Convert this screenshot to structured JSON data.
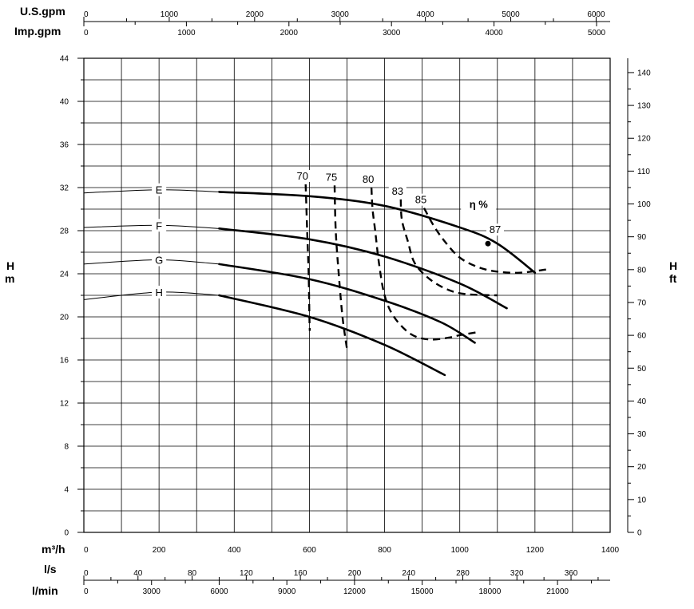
{
  "chart_data": {
    "type": "line",
    "axes": {
      "left": {
        "unit_top": "H",
        "unit_bottom": "m",
        "ylim": [
          0,
          44
        ],
        "ticks": [
          0,
          4,
          8,
          12,
          16,
          20,
          24,
          28,
          32,
          36,
          40,
          44
        ]
      },
      "right": {
        "unit_top": "H",
        "unit_bottom": "ft",
        "ylim": [
          0,
          144.36
        ],
        "ticks": [
          0,
          10,
          20,
          30,
          40,
          50,
          60,
          70,
          80,
          90,
          100,
          110,
          120,
          130,
          140
        ]
      },
      "m3h": {
        "label": "m³/h",
        "xlim": [
          0,
          1400
        ],
        "ticks": [
          0,
          200,
          400,
          600,
          800,
          1000,
          1200,
          1400
        ]
      },
      "ls": {
        "label": "l/s",
        "ticks": [
          0,
          40,
          80,
          120,
          160,
          200,
          240,
          280,
          320,
          360
        ]
      },
      "lmin": {
        "label": "l/min",
        "ticks": [
          0,
          3000,
          6000,
          9000,
          12000,
          15000,
          18000,
          21000
        ]
      },
      "usgpm": {
        "label": "U.S.gpm",
        "ticks": [
          0,
          1000,
          2000,
          3000,
          4000,
          5000,
          6000
        ]
      },
      "impgpm": {
        "label": "Imp.gpm",
        "ticks": [
          0,
          1000,
          2000,
          3000,
          4000,
          5000
        ]
      }
    },
    "grid": true,
    "head_curves": [
      {
        "name": "E",
        "label_x": 200,
        "points": [
          [
            0,
            31.5
          ],
          [
            200,
            31.8
          ],
          [
            360,
            31.6
          ],
          [
            600,
            31.2
          ],
          [
            800,
            30.3
          ],
          [
            1000,
            28.3
          ],
          [
            1100,
            26.8
          ],
          [
            1200,
            24.1
          ]
        ],
        "bold_from": 360
      },
      {
        "name": "F",
        "label_x": 200,
        "points": [
          [
            0,
            28.3
          ],
          [
            200,
            28.5
          ],
          [
            360,
            28.2
          ],
          [
            600,
            27.2
          ],
          [
            800,
            25.6
          ],
          [
            1000,
            23.1
          ],
          [
            1125,
            20.8
          ]
        ],
        "bold_from": 360
      },
      {
        "name": "G",
        "label_x": 200,
        "points": [
          [
            0,
            24.9
          ],
          [
            200,
            25.3
          ],
          [
            360,
            24.9
          ],
          [
            600,
            23.5
          ],
          [
            800,
            21.5
          ],
          [
            950,
            19.5
          ],
          [
            1040,
            17.6
          ]
        ],
        "bold_from": 360
      },
      {
        "name": "H",
        "label_x": 200,
        "points": [
          [
            0,
            21.6
          ],
          [
            200,
            22.3
          ],
          [
            360,
            22.0
          ],
          [
            600,
            20.0
          ],
          [
            800,
            17.4
          ],
          [
            960,
            14.6
          ]
        ],
        "bold_from": 360
      }
    ],
    "efficiency_label": "η %",
    "efficiency_curves": [
      {
        "name": "70",
        "points": [
          [
            590,
            32.3
          ],
          [
            594,
            28
          ],
          [
            598,
            24
          ],
          [
            600,
            20
          ],
          [
            601,
            18.7
          ]
        ]
      },
      {
        "name": "75",
        "points": [
          [
            667,
            32.2
          ],
          [
            670,
            28
          ],
          [
            678,
            24
          ],
          [
            688,
            20
          ],
          [
            700,
            17
          ]
        ]
      },
      {
        "name": "80",
        "points": [
          [
            765,
            32.0
          ],
          [
            768,
            30
          ],
          [
            775,
            28
          ],
          [
            785,
            25
          ],
          [
            800,
            22
          ],
          [
            825,
            20
          ],
          [
            870,
            18.4
          ],
          [
            920,
            17.9
          ],
          [
            975,
            18.1
          ],
          [
            1000,
            18.3
          ],
          [
            1050,
            18.6
          ]
        ]
      },
      {
        "name": "83",
        "points": [
          [
            843,
            30.9
          ],
          [
            846,
            29
          ],
          [
            862,
            27
          ],
          [
            880,
            25
          ],
          [
            920,
            23.5
          ],
          [
            970,
            22.5
          ],
          [
            1020,
            22.1
          ],
          [
            1100,
            22.0
          ]
        ]
      },
      {
        "name": "85",
        "points": [
          [
            905,
            30.1
          ],
          [
            930,
            28.5
          ],
          [
            960,
            27
          ],
          [
            1000,
            25.5
          ],
          [
            1050,
            24.6
          ],
          [
            1100,
            24.2
          ],
          [
            1160,
            24.1
          ],
          [
            1230,
            24.4
          ]
        ]
      }
    ],
    "efficiency_points": [
      {
        "label": "87",
        "x": 1075,
        "y": 26.8
      }
    ]
  }
}
